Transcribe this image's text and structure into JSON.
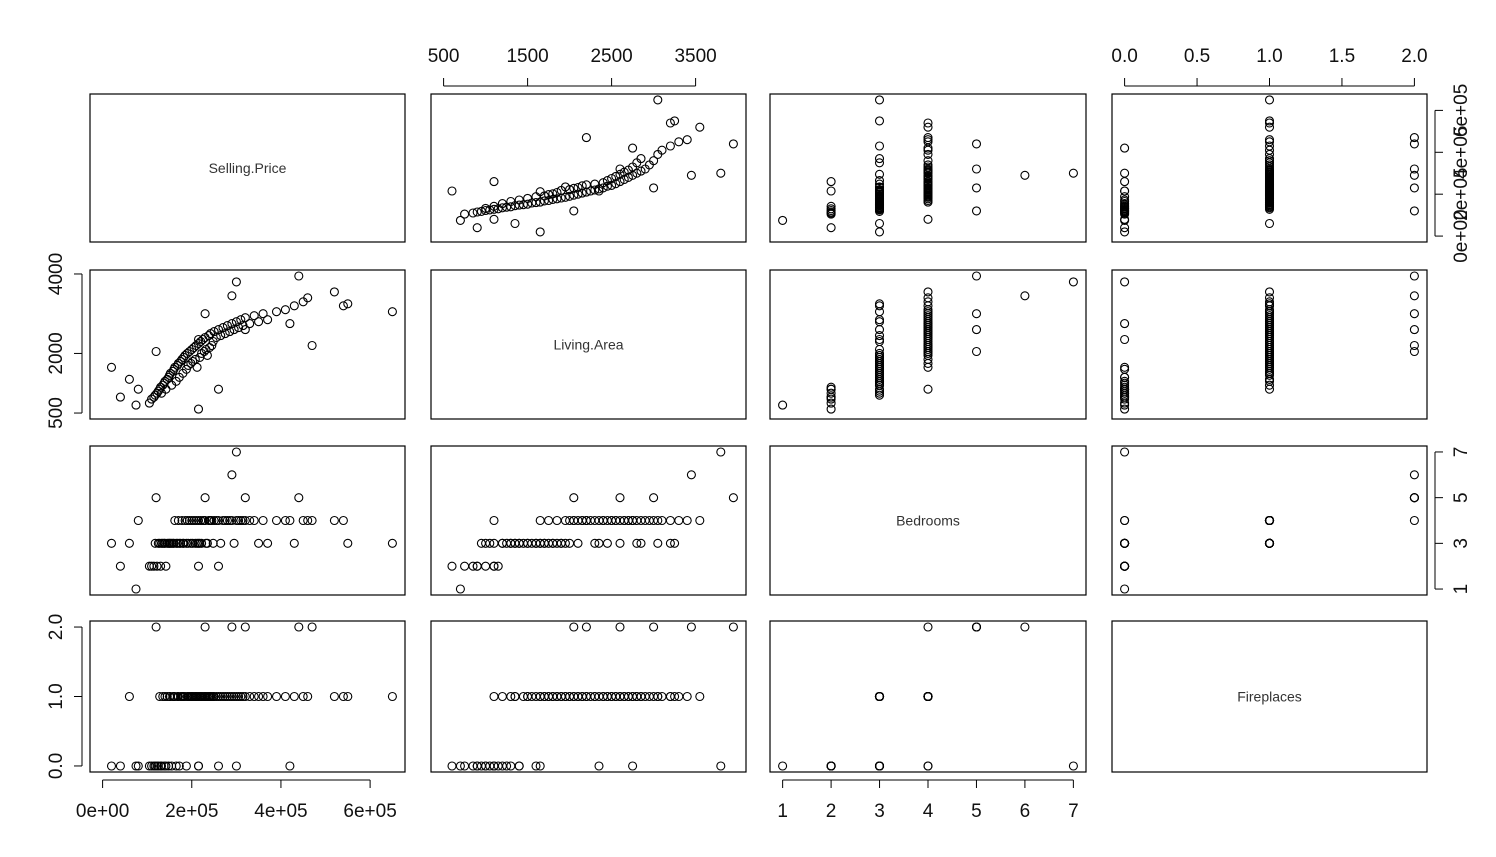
{
  "chart_data": {
    "type": "scatter",
    "kind": "pairs-matrix",
    "variables": [
      "Selling.Price",
      "Living.Area",
      "Bedrooms",
      "Fireplaces"
    ],
    "ranges": {
      "Selling.Price": [
        0,
        650000
      ],
      "Living.Area": [
        500,
        3950
      ],
      "Bedrooms": [
        1,
        7
      ],
      "Fireplaces": [
        0,
        2
      ]
    },
    "ticks": {
      "Selling.Price": {
        "values": [
          0,
          200000,
          400000,
          600000
        ],
        "labels": [
          "0e+00",
          "2e+05",
          "4e+05",
          "6e+05"
        ]
      },
      "Living.Area": {
        "values": [
          500,
          1500,
          2500,
          3500
        ],
        "labels": [
          "500",
          "1500",
          "2500",
          "3500"
        ],
        "side_values": [
          500,
          2000,
          4000
        ],
        "side_labels": [
          "500",
          "2000",
          "4000"
        ]
      },
      "Bedrooms": {
        "values": [
          1,
          2,
          3,
          4,
          5,
          6,
          7
        ],
        "labels": [
          "1",
          "2",
          "3",
          "4",
          "5",
          "6",
          "7"
        ],
        "side_values": [
          1,
          3,
          5,
          7
        ],
        "side_labels": [
          "1",
          "3",
          "5",
          "7"
        ]
      },
      "Fireplaces": {
        "values": [
          0,
          0.5,
          1,
          1.5,
          2
        ],
        "labels": [
          "0.0",
          "0.5",
          "1.0",
          "1.5",
          "2.0"
        ],
        "side_values": [
          0,
          1,
          2
        ],
        "side_labels": [
          "0.0",
          "1.0",
          "2.0"
        ]
      }
    },
    "data": [
      [
        105000,
        750,
        2,
        0
      ],
      [
        110000,
        850,
        2,
        0
      ],
      [
        115000,
        900,
        2,
        0
      ],
      [
        118000,
        950,
        3,
        0
      ],
      [
        122000,
        1000,
        2,
        0
      ],
      [
        125000,
        1050,
        3,
        0
      ],
      [
        128000,
        1100,
        3,
        1
      ],
      [
        130000,
        1150,
        2,
        0
      ],
      [
        132000,
        1000,
        3,
        0
      ],
      [
        135000,
        1200,
        3,
        1
      ],
      [
        138000,
        1250,
        3,
        0
      ],
      [
        140000,
        1300,
        3,
        1
      ],
      [
        142000,
        1100,
        2,
        0
      ],
      [
        145000,
        1350,
        3,
        1
      ],
      [
        148000,
        1400,
        3,
        0
      ],
      [
        150000,
        1450,
        3,
        1
      ],
      [
        152000,
        1500,
        3,
        1
      ],
      [
        155000,
        1200,
        3,
        0
      ],
      [
        158000,
        1550,
        3,
        1
      ],
      [
        160000,
        1600,
        3,
        1
      ],
      [
        162000,
        1650,
        4,
        1
      ],
      [
        165000,
        1300,
        3,
        0
      ],
      [
        168000,
        1700,
        3,
        1
      ],
      [
        170000,
        1750,
        4,
        1
      ],
      [
        172000,
        1400,
        3,
        0
      ],
      [
        175000,
        1800,
        3,
        1
      ],
      [
        178000,
        1850,
        4,
        1
      ],
      [
        180000,
        1500,
        3,
        1
      ],
      [
        182000,
        1900,
        3,
        1
      ],
      [
        185000,
        1950,
        4,
        1
      ],
      [
        188000,
        1600,
        3,
        0
      ],
      [
        190000,
        2000,
        4,
        1
      ],
      [
        192000,
        1700,
        3,
        1
      ],
      [
        195000,
        2050,
        4,
        1
      ],
      [
        198000,
        1750,
        3,
        1
      ],
      [
        200000,
        2100,
        4,
        1
      ],
      [
        202000,
        1800,
        3,
        1
      ],
      [
        205000,
        2150,
        4,
        1
      ],
      [
        208000,
        1850,
        3,
        1
      ],
      [
        210000,
        2200,
        4,
        1
      ],
      [
        212000,
        1650,
        3,
        1
      ],
      [
        215000,
        2250,
        4,
        1
      ],
      [
        218000,
        1900,
        3,
        1
      ],
      [
        220000,
        2300,
        4,
        1
      ],
      [
        222000,
        2000,
        3,
        1
      ],
      [
        225000,
        2350,
        4,
        1
      ],
      [
        228000,
        2050,
        4,
        1
      ],
      [
        230000,
        2400,
        4,
        1
      ],
      [
        232000,
        2100,
        3,
        1
      ],
      [
        235000,
        1950,
        3,
        1
      ],
      [
        238000,
        2450,
        4,
        1
      ],
      [
        240000,
        2150,
        4,
        1
      ],
      [
        242000,
        2500,
        4,
        1
      ],
      [
        245000,
        2200,
        4,
        1
      ],
      [
        248000,
        2300,
        3,
        1
      ],
      [
        250000,
        2550,
        4,
        1
      ],
      [
        255000,
        2400,
        4,
        1
      ],
      [
        260000,
        2600,
        4,
        1
      ],
      [
        265000,
        2450,
        3,
        1
      ],
      [
        270000,
        2650,
        4,
        1
      ],
      [
        275000,
        2500,
        4,
        1
      ],
      [
        280000,
        2700,
        4,
        1
      ],
      [
        285000,
        2550,
        4,
        1
      ],
      [
        290000,
        2750,
        4,
        1
      ],
      [
        295000,
        2600,
        3,
        1
      ],
      [
        300000,
        2800,
        4,
        1
      ],
      [
        305000,
        2650,
        4,
        1
      ],
      [
        310000,
        2850,
        4,
        1
      ],
      [
        315000,
        2700,
        4,
        1
      ],
      [
        320000,
        2900,
        4,
        1
      ],
      [
        330000,
        2750,
        4,
        1
      ],
      [
        340000,
        2950,
        4,
        1
      ],
      [
        350000,
        2800,
        3,
        1
      ],
      [
        360000,
        3000,
        4,
        1
      ],
      [
        370000,
        2850,
        3,
        1
      ],
      [
        390000,
        3050,
        4,
        1
      ],
      [
        410000,
        3100,
        4,
        1
      ],
      [
        430000,
        3200,
        3,
        1
      ],
      [
        450000,
        3300,
        4,
        1
      ],
      [
        460000,
        3400,
        4,
        1
      ],
      [
        520000,
        3550,
        4,
        1
      ],
      [
        540000,
        3200,
        4,
        1
      ],
      [
        550000,
        3250,
        3,
        1
      ],
      [
        650000,
        3050,
        3,
        1
      ],
      [
        60000,
        1350,
        3,
        1
      ],
      [
        20000,
        1650,
        3,
        0
      ],
      [
        40000,
        900,
        2,
        0
      ],
      [
        75000,
        700,
        1,
        0
      ],
      [
        215000,
        600,
        2,
        0
      ],
      [
        260000,
        1100,
        2,
        0
      ],
      [
        300000,
        3800,
        7,
        0
      ],
      [
        290000,
        3450,
        6,
        2
      ],
      [
        440000,
        3950,
        5,
        2
      ],
      [
        320000,
        2600,
        5,
        2
      ],
      [
        120000,
        2050,
        5,
        2
      ],
      [
        230000,
        3000,
        5,
        2
      ],
      [
        470000,
        2200,
        4,
        2
      ],
      [
        420000,
        2750,
        4,
        0
      ],
      [
        80000,
        1100,
        4,
        0
      ],
      [
        215000,
        2350,
        3,
        0
      ]
    ]
  }
}
